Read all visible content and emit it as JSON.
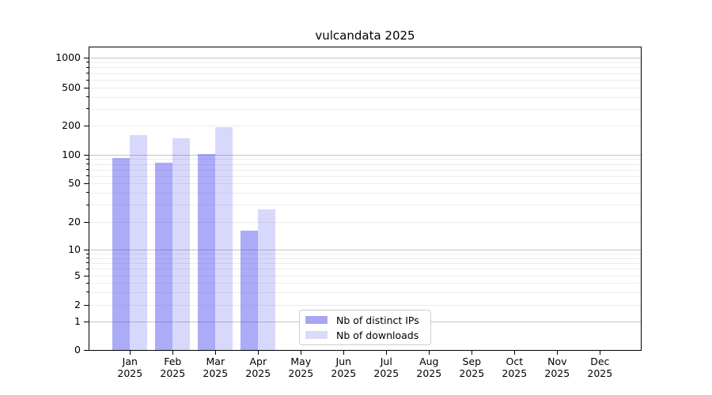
{
  "title": "vulcandata 2025",
  "chart_data": {
    "type": "bar",
    "title": "vulcandata 2025",
    "xlabel": "",
    "ylabel": "",
    "yscale": "symlog-like (linear below 1, logarithmic above)",
    "y_ticks": [
      0,
      1,
      2,
      5,
      10,
      20,
      50,
      100,
      200,
      500,
      1000
    ],
    "ylim": [
      0,
      1300
    ],
    "grid": true,
    "legend_position": "bottom-center",
    "categories": [
      "Jan 2025",
      "Feb 2025",
      "Mar 2025",
      "Apr 2025",
      "May 2025",
      "Jun 2025",
      "Jul 2025",
      "Aug 2025",
      "Sep 2025",
      "Oct 2025",
      "Nov 2025",
      "Dec 2025"
    ],
    "series": [
      {
        "name": "Nb of distinct IPs",
        "color": "#a6a6f5",
        "values": [
          93,
          83,
          102,
          16,
          0,
          0,
          0,
          0,
          0,
          0,
          0,
          0
        ]
      },
      {
        "name": "Nb of downloads",
        "color": "#dadaf9",
        "values": [
          160,
          148,
          192,
          27,
          0,
          0,
          0,
          0,
          0,
          0,
          0,
          0
        ]
      }
    ]
  }
}
